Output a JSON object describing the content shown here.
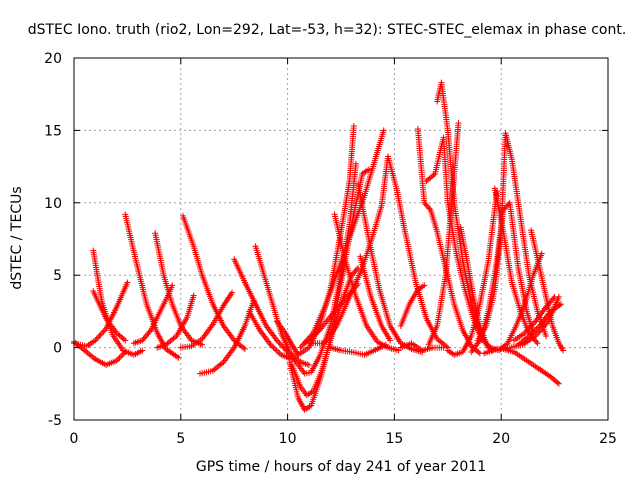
{
  "chart_data": {
    "type": "scatter",
    "title": "dSTEC Iono. truth (rio2, Lon=292, Lat=-53, h=32): STEC-STEC_elemax in phase cont.",
    "xlabel": "GPS time / hours of day 241 of year 2011",
    "ylabel": "dSTEC  / TECUs",
    "xlim": [
      0,
      25
    ],
    "ylim": [
      -5,
      20
    ],
    "x_ticks": [
      "0",
      "5",
      "10",
      "15",
      "20",
      "25"
    ],
    "y_ticks": [
      "-5",
      "0",
      "5",
      "10",
      "15",
      "20"
    ],
    "grid": true,
    "marker": "plus",
    "colors": {
      "series": "#ff0000",
      "grid": "#a0a0a0",
      "axis": "#000000"
    },
    "series": [
      {
        "points": [
          [
            0.0,
            0.4
          ],
          [
            0.5,
            -0.2
          ],
          [
            1.0,
            -0.8
          ],
          [
            1.5,
            -1.2
          ],
          [
            2.0,
            -0.9
          ],
          [
            2.4,
            -0.3
          ]
        ]
      },
      {
        "points": [
          [
            0.0,
            0.3
          ],
          [
            0.6,
            0.1
          ],
          [
            1.0,
            0.5
          ],
          [
            1.5,
            1.3
          ],
          [
            2.0,
            2.8
          ],
          [
            2.5,
            4.5
          ]
        ]
      },
      {
        "points": [
          [
            0.9,
            6.7
          ],
          [
            1.3,
            3.2
          ],
          [
            1.8,
            0.9
          ],
          [
            2.3,
            -0.2
          ],
          [
            2.8,
            -0.5
          ],
          [
            3.2,
            -0.2
          ]
        ]
      },
      {
        "points": [
          [
            0.9,
            3.9
          ],
          [
            1.5,
            2.0
          ],
          [
            2.0,
            1.0
          ],
          [
            2.4,
            0.5
          ]
        ]
      },
      {
        "points": [
          [
            2.4,
            9.2
          ],
          [
            2.9,
            6.0
          ],
          [
            3.4,
            3.0
          ],
          [
            3.9,
            1.0
          ],
          [
            4.3,
            -0.1
          ],
          [
            4.9,
            -0.7
          ]
        ]
      },
      {
        "points": [
          [
            2.8,
            0.3
          ],
          [
            3.2,
            0.5
          ],
          [
            3.6,
            1.2
          ],
          [
            4.0,
            2.4
          ],
          [
            4.4,
            3.6
          ],
          [
            4.6,
            4.3
          ]
        ]
      },
      {
        "points": [
          [
            3.8,
            7.9
          ],
          [
            4.2,
            5.0
          ],
          [
            4.6,
            3.0
          ],
          [
            5.0,
            1.5
          ],
          [
            5.5,
            0.5
          ],
          [
            6.0,
            0.2
          ]
        ]
      },
      {
        "points": [
          [
            3.9,
            0.0
          ],
          [
            4.3,
            0.2
          ],
          [
            4.8,
            0.8
          ],
          [
            5.3,
            2.1
          ],
          [
            5.6,
            3.6
          ]
        ]
      },
      {
        "points": [
          [
            5.1,
            9.1
          ],
          [
            5.6,
            7.0
          ],
          [
            6.0,
            5.0
          ],
          [
            6.5,
            3.0
          ],
          [
            7.0,
            1.5
          ],
          [
            7.5,
            0.5
          ],
          [
            8.0,
            -0.1
          ]
        ]
      },
      {
        "points": [
          [
            5.0,
            0.0
          ],
          [
            5.5,
            0.1
          ],
          [
            6.0,
            0.6
          ],
          [
            6.5,
            1.6
          ],
          [
            7.0,
            2.9
          ],
          [
            7.4,
            3.8
          ]
        ]
      },
      {
        "points": [
          [
            5.9,
            -1.8
          ],
          [
            6.5,
            -1.6
          ],
          [
            7.0,
            -1.0
          ],
          [
            7.5,
            0.0
          ],
          [
            8.0,
            1.5
          ],
          [
            8.4,
            3.2
          ]
        ]
      },
      {
        "points": [
          [
            7.5,
            6.1
          ],
          [
            8.0,
            4.5
          ],
          [
            8.5,
            3.0
          ],
          [
            9.0,
            1.5
          ],
          [
            9.5,
            0.5
          ],
          [
            10.0,
            -0.3
          ]
        ]
      },
      {
        "points": [
          [
            8.2,
            2.5
          ],
          [
            8.7,
            1.2
          ],
          [
            9.2,
            0.2
          ],
          [
            9.7,
            -0.5
          ],
          [
            10.2,
            -0.8
          ]
        ]
      },
      {
        "points": [
          [
            8.5,
            7.0
          ],
          [
            8.9,
            5.0
          ],
          [
            9.3,
            3.0
          ],
          [
            9.7,
            1.0
          ],
          [
            10.1,
            -0.3
          ],
          [
            10.6,
            -1.0
          ],
          [
            11.0,
            -1.2
          ]
        ]
      },
      {
        "points": [
          [
            9.5,
            1.8
          ],
          [
            9.9,
            1.0
          ],
          [
            10.2,
            0.2
          ],
          [
            10.5,
            -0.5
          ]
        ]
      },
      {
        "points": [
          [
            10.0,
            -0.3
          ],
          [
            10.5,
            -1.2
          ],
          [
            10.8,
            -1.8
          ],
          [
            11.1,
            -1.7
          ],
          [
            11.5,
            -0.6
          ],
          [
            12.0,
            1.5
          ],
          [
            12.5,
            5.0
          ],
          [
            12.9,
            8.5
          ],
          [
            13.2,
            12.7
          ]
        ]
      },
      {
        "points": [
          [
            10.2,
            -1.2
          ],
          [
            10.6,
            -2.7
          ],
          [
            10.9,
            -3.3
          ],
          [
            11.2,
            -3.0
          ],
          [
            11.6,
            -1.6
          ],
          [
            12.0,
            0.5
          ],
          [
            12.5,
            3.0
          ],
          [
            13.0,
            5.0
          ],
          [
            13.3,
            5.5
          ]
        ]
      },
      {
        "points": [
          [
            10.1,
            -1.0
          ],
          [
            10.5,
            -3.5
          ],
          [
            10.8,
            -4.3
          ],
          [
            11.1,
            -4.0
          ],
          [
            11.5,
            -2.3
          ],
          [
            12.0,
            0.5
          ],
          [
            12.5,
            4.5
          ],
          [
            13.0,
            8.5
          ],
          [
            13.5,
            12.0
          ],
          [
            13.8,
            12.3
          ]
        ]
      },
      {
        "points": [
          [
            10.5,
            -0.5
          ],
          [
            11.0,
            0.0
          ],
          [
            11.5,
            1.5
          ],
          [
            12.0,
            4.0
          ],
          [
            12.5,
            8.0
          ],
          [
            12.9,
            11.5
          ],
          [
            13.1,
            15.3
          ]
        ]
      },
      {
        "points": [
          [
            10.6,
            0.0
          ],
          [
            11.2,
            1.0
          ],
          [
            11.8,
            3.0
          ],
          [
            12.4,
            5.5
          ],
          [
            13.0,
            8.0
          ],
          [
            13.6,
            10.5
          ],
          [
            14.0,
            12.5
          ],
          [
            14.5,
            15.0
          ]
        ]
      },
      {
        "points": [
          [
            10.8,
            0.3
          ],
          [
            11.5,
            1.2
          ],
          [
            12.2,
            2.5
          ],
          [
            12.8,
            3.5
          ],
          [
            13.3,
            4.4
          ]
        ]
      },
      {
        "points": [
          [
            11.0,
            0.3
          ],
          [
            11.7,
            0.3
          ],
          [
            12.3,
            1.5
          ],
          [
            12.9,
            3.5
          ],
          [
            13.5,
            5.5
          ],
          [
            14.0,
            7.8
          ],
          [
            14.4,
            9.8
          ],
          [
            14.7,
            13.2
          ]
        ]
      },
      {
        "points": [
          [
            12.0,
            0.0
          ],
          [
            12.5,
            -0.2
          ],
          [
            13.0,
            -0.3
          ],
          [
            13.6,
            -0.5
          ],
          [
            14.2,
            -0.1
          ],
          [
            14.6,
            0.2
          ]
        ]
      },
      {
        "points": [
          [
            12.2,
            9.2
          ],
          [
            12.7,
            6.0
          ],
          [
            13.2,
            3.5
          ],
          [
            13.7,
            1.5
          ],
          [
            14.2,
            0.4
          ],
          [
            14.7,
            0.0
          ],
          [
            15.2,
            -0.2
          ]
        ]
      },
      {
        "points": [
          [
            13.3,
            11.3
          ],
          [
            13.8,
            7.5
          ],
          [
            14.3,
            4.0
          ],
          [
            14.8,
            1.5
          ],
          [
            15.3,
            0.3
          ],
          [
            15.8,
            -0.1
          ],
          [
            16.3,
            -0.3
          ]
        ]
      },
      {
        "points": [
          [
            13.4,
            6.3
          ],
          [
            13.9,
            3.5
          ],
          [
            14.4,
            1.5
          ],
          [
            14.8,
            0.5
          ]
        ]
      },
      {
        "points": [
          [
            14.7,
            13.2
          ],
          [
            15.1,
            11.0
          ],
          [
            15.5,
            8.0
          ],
          [
            16.0,
            4.5
          ],
          [
            16.5,
            2.0
          ],
          [
            17.0,
            0.6
          ],
          [
            17.5,
            0.0
          ]
        ]
      },
      {
        "points": [
          [
            15.3,
            0.0
          ],
          [
            15.8,
            0.3
          ],
          [
            16.3,
            -0.2
          ],
          [
            16.8,
            0.0
          ],
          [
            17.3,
            0.0
          ]
        ]
      },
      {
        "points": [
          [
            15.3,
            1.5
          ],
          [
            15.7,
            3.0
          ],
          [
            16.1,
            4.0
          ],
          [
            16.4,
            4.3
          ]
        ]
      },
      {
        "points": [
          [
            16.1,
            15.1
          ],
          [
            16.4,
            10.0
          ],
          [
            16.7,
            9.5
          ],
          [
            17.0,
            8.0
          ],
          [
            17.4,
            5.5
          ],
          [
            17.8,
            3.0
          ],
          [
            18.2,
            1.2
          ],
          [
            18.6,
            0.1
          ],
          [
            19.0,
            -0.4
          ]
        ]
      },
      {
        "points": [
          [
            16.5,
            11.5
          ],
          [
            16.9,
            12.0
          ],
          [
            17.3,
            14.5
          ],
          [
            17.5,
            10.0
          ],
          [
            17.9,
            6.5
          ],
          [
            18.3,
            4.0
          ],
          [
            18.7,
            2.0
          ],
          [
            19.1,
            0.5
          ]
        ]
      },
      {
        "points": [
          [
            17.0,
            17.0
          ],
          [
            17.2,
            18.3
          ],
          [
            17.5,
            15.0
          ],
          [
            17.8,
            10.0
          ],
          [
            18.2,
            6.0
          ],
          [
            18.6,
            3.0
          ],
          [
            19.0,
            1.0
          ],
          [
            19.4,
            0.0
          ]
        ]
      },
      {
        "points": [
          [
            16.6,
            0.2
          ],
          [
            17.0,
            1.5
          ],
          [
            17.4,
            5.0
          ],
          [
            17.8,
            12.0
          ],
          [
            18.0,
            15.5
          ]
        ]
      },
      {
        "points": [
          [
            17.5,
            -0.2
          ],
          [
            17.8,
            -0.5
          ],
          [
            18.2,
            -0.3
          ],
          [
            18.6,
            0.8
          ],
          [
            19.0,
            3.0
          ],
          [
            19.4,
            6.0
          ],
          [
            19.8,
            10.8
          ]
        ]
      },
      {
        "points": [
          [
            18.1,
            8.3
          ],
          [
            18.4,
            6.0
          ],
          [
            18.7,
            3.5
          ],
          [
            19.0,
            1.5
          ],
          [
            19.3,
            0.3
          ],
          [
            19.6,
            -0.2
          ]
        ]
      },
      {
        "points": [
          [
            18.6,
            -0.3
          ],
          [
            19.0,
            0.5
          ],
          [
            19.4,
            2.5
          ],
          [
            19.8,
            6.0
          ],
          [
            20.1,
            9.5
          ],
          [
            20.4,
            10.0
          ],
          [
            20.8,
            5.5
          ],
          [
            21.2,
            2.5
          ],
          [
            21.5,
            1.0
          ]
        ]
      },
      {
        "points": [
          [
            18.9,
            0.5
          ],
          [
            19.3,
            1.5
          ],
          [
            19.7,
            4.0
          ],
          [
            20.0,
            8.0
          ],
          [
            20.2,
            14.8
          ],
          [
            20.5,
            13.0
          ],
          [
            20.9,
            9.0
          ],
          [
            21.3,
            5.0
          ],
          [
            21.7,
            2.5
          ],
          [
            22.1,
            0.8
          ]
        ]
      },
      {
        "points": [
          [
            19.7,
            11.0
          ],
          [
            20.1,
            8.0
          ],
          [
            20.5,
            4.5
          ],
          [
            20.9,
            2.5
          ],
          [
            21.3,
            1.0
          ],
          [
            21.7,
            0.3
          ]
        ]
      },
      {
        "points": [
          [
            19.5,
            0.0
          ],
          [
            19.9,
            -0.2
          ],
          [
            20.3,
            0.3
          ],
          [
            20.7,
            1.5
          ],
          [
            21.1,
            3.0
          ],
          [
            21.5,
            5.0
          ],
          [
            21.9,
            6.5
          ]
        ]
      },
      {
        "points": [
          [
            19.2,
            -0.4
          ],
          [
            19.8,
            -0.1
          ],
          [
            20.4,
            0.0
          ],
          [
            21.0,
            0.2
          ],
          [
            21.6,
            0.8
          ],
          [
            22.2,
            1.8
          ],
          [
            22.7,
            3.5
          ]
        ]
      },
      {
        "points": [
          [
            20.1,
            -0.1
          ],
          [
            20.6,
            -0.3
          ],
          [
            21.1,
            -0.8
          ],
          [
            21.6,
            -1.3
          ],
          [
            22.0,
            -1.7
          ],
          [
            22.3,
            -2.0
          ],
          [
            22.7,
            -2.5
          ]
        ]
      },
      {
        "points": [
          [
            21.4,
            8.1
          ],
          [
            21.8,
            5.5
          ],
          [
            22.1,
            3.5
          ],
          [
            22.4,
            1.5
          ],
          [
            22.7,
            0.3
          ],
          [
            22.9,
            -0.2
          ]
        ]
      },
      {
        "points": [
          [
            20.6,
            0.5
          ],
          [
            21.1,
            1.0
          ],
          [
            21.6,
            1.8
          ],
          [
            22.1,
            2.8
          ],
          [
            22.5,
            3.5
          ]
        ]
      },
      {
        "points": [
          [
            20.8,
            0.2
          ],
          [
            21.3,
            0.8
          ],
          [
            21.8,
            1.5
          ],
          [
            22.2,
            2.3
          ],
          [
            22.6,
            2.8
          ],
          [
            22.8,
            3.0
          ]
        ]
      }
    ]
  }
}
